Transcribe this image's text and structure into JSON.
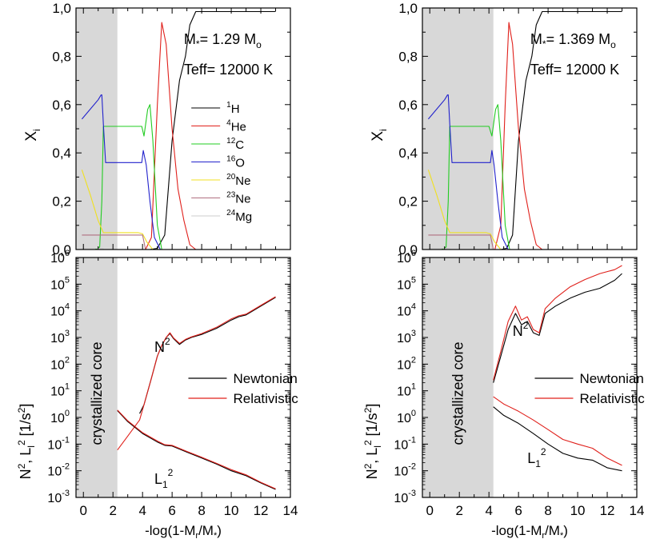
{
  "chart_data": [
    {
      "type": "line",
      "panel": "left",
      "annotations": {
        "mass": "M",
        "mass_sub": "*",
        "mass_eq": "= 1.29 M",
        "mass_unit_sub": "o",
        "teff": "Teff= 12000 K"
      },
      "ylabel": "X",
      "ylabel_sub": "i",
      "xlim": [
        -0.5,
        14
      ],
      "ylim": [
        0,
        1
      ],
      "yticks": [
        "0,0",
        "0,2",
        "0,4",
        "0,6",
        "0,8",
        "1,0"
      ],
      "shaded_region": [
        -0.5,
        2.3
      ],
      "legend": [
        {
          "sup": "1",
          "el": "H",
          "color": "#000000"
        },
        {
          "sup": "4",
          "el": "He",
          "color": "#e0201b"
        },
        {
          "sup": "12",
          "el": "C",
          "color": "#22cc22"
        },
        {
          "sup": "16",
          "el": "O",
          "color": "#2222cc"
        },
        {
          "sup": "20",
          "el": "Ne",
          "color": "#f0e020"
        },
        {
          "sup": "23",
          "el": "Ne",
          "color": "#b07080"
        },
        {
          "sup": "24",
          "el": "Mg",
          "color": "#cccccc"
        }
      ],
      "series": [
        {
          "color": "#000000",
          "x": [
            -0.1,
            4.5,
            5.0,
            5.5,
            6.0,
            6.5,
            6.9,
            7.2,
            7.6,
            13.0
          ],
          "y": [
            0,
            0,
            0.005,
            0.06,
            0.45,
            0.7,
            0.8,
            0.93,
            0.985,
            0.985
          ]
        },
        {
          "color": "#e0201b",
          "x": [
            -0.1,
            4.2,
            4.6,
            5.0,
            5.3,
            5.6,
            6.0,
            6.4,
            6.8,
            7.2,
            7.6,
            13.0
          ],
          "y": [
            0,
            0,
            0.05,
            0.6,
            0.94,
            0.85,
            0.5,
            0.25,
            0.12,
            0.02,
            0,
            0
          ]
        },
        {
          "color": "#22cc22",
          "x": [
            -0.1,
            0.8,
            1.1,
            1.25,
            1.35,
            1.5,
            3.7,
            3.95,
            4.1,
            4.35,
            4.5,
            4.7,
            5.0,
            5.3,
            13.0
          ],
          "y": [
            0,
            0,
            0.01,
            0.2,
            0.51,
            0.51,
            0.51,
            0.51,
            0.47,
            0.58,
            0.6,
            0.45,
            0.1,
            0,
            0
          ]
        },
        {
          "color": "#2222cc",
          "x": [
            -0.1,
            1.0,
            1.2,
            1.25,
            1.35,
            1.5,
            3.7,
            3.95,
            4.05,
            4.25,
            4.5,
            4.8,
            5.2,
            13.0
          ],
          "y": [
            0.54,
            0.62,
            0.64,
            0.64,
            0.52,
            0.36,
            0.36,
            0.36,
            0.41,
            0.35,
            0.2,
            0.05,
            0,
            0
          ]
        },
        {
          "color": "#f0e020",
          "x": [
            -0.1,
            0.5,
            1.0,
            1.35,
            1.5,
            3.7,
            4.0,
            4.3,
            4.7,
            13.0
          ],
          "y": [
            0.33,
            0.22,
            0.12,
            0.07,
            0.07,
            0.07,
            0.065,
            0.03,
            0,
            0
          ]
        },
        {
          "color": "#b07080",
          "x": [
            -0.1,
            4.0,
            4.2,
            13.0
          ],
          "y": [
            0.06,
            0.06,
            0.0,
            0.0
          ]
        },
        {
          "color": "#cccccc",
          "x": [
            -0.1,
            1.3,
            1.4,
            13.0
          ],
          "y": [
            0.005,
            0.005,
            0,
            0
          ]
        }
      ]
    },
    {
      "type": "line",
      "panel": "right",
      "annotations": {
        "mass": "M",
        "mass_sub": "*",
        "mass_eq": "= 1.369 M",
        "mass_unit_sub": "o",
        "teff": "Teff= 12000 K"
      },
      "ylabel": "X",
      "ylabel_sub": "i",
      "xlim": [
        -0.5,
        14
      ],
      "ylim": [
        0,
        1
      ],
      "yticks": [
        "0,0",
        "0,2",
        "0,4",
        "0,6",
        "0,8",
        "1,0"
      ],
      "shaded_region": [
        -0.5,
        4.3
      ],
      "series": [
        {
          "color": "#000000",
          "x": [
            -0.1,
            4.8,
            5.2,
            5.6,
            6.0,
            6.5,
            6.9,
            7.2,
            7.6,
            13.0
          ],
          "y": [
            0,
            0,
            0.005,
            0.06,
            0.45,
            0.7,
            0.8,
            0.93,
            0.985,
            0.985
          ]
        },
        {
          "color": "#e0201b",
          "x": [
            -0.1,
            4.4,
            4.8,
            5.1,
            5.35,
            5.6,
            6.0,
            6.4,
            6.8,
            7.2,
            7.6,
            13.0
          ],
          "y": [
            0,
            0,
            0.1,
            0.6,
            0.94,
            0.85,
            0.5,
            0.25,
            0.12,
            0.02,
            0,
            0
          ]
        },
        {
          "color": "#22cc22",
          "x": [
            -0.1,
            0.8,
            1.1,
            1.25,
            1.35,
            1.5,
            3.7,
            4.0,
            4.2,
            4.45,
            4.6,
            4.8,
            5.1,
            5.4,
            13.0
          ],
          "y": [
            0,
            0,
            0.01,
            0.2,
            0.51,
            0.51,
            0.51,
            0.51,
            0.47,
            0.58,
            0.6,
            0.45,
            0.1,
            0,
            0
          ]
        },
        {
          "color": "#2222cc",
          "x": [
            -0.1,
            1.0,
            1.2,
            1.25,
            1.35,
            1.5,
            3.8,
            4.1,
            4.2,
            4.35,
            4.6,
            4.9,
            5.3,
            13.0
          ],
          "y": [
            0.54,
            0.62,
            0.64,
            0.64,
            0.52,
            0.36,
            0.36,
            0.36,
            0.41,
            0.35,
            0.2,
            0.05,
            0,
            0
          ]
        },
        {
          "color": "#f0e020",
          "x": [
            -0.1,
            0.5,
            1.0,
            1.35,
            1.5,
            3.8,
            4.1,
            4.4,
            4.8,
            13.0
          ],
          "y": [
            0.33,
            0.22,
            0.12,
            0.07,
            0.07,
            0.07,
            0.065,
            0.03,
            0,
            0
          ]
        },
        {
          "color": "#b07080",
          "x": [
            -0.1,
            4.1,
            4.3,
            13.0
          ],
          "y": [
            0.06,
            0.06,
            0.0,
            0.0
          ]
        },
        {
          "color": "#cccccc",
          "x": [
            -0.1,
            1.3,
            1.4,
            13.0
          ],
          "y": [
            0.005,
            0.005,
            0,
            0
          ]
        }
      ]
    },
    {
      "type": "line",
      "panel": "left",
      "yscale": "log",
      "xlabel": "-log(1-M",
      "xlabel_sub1": "r",
      "xlabel_mid": "/M",
      "xlabel_sub2": "*",
      "xlabel_end": ")",
      "ylabel_parts": [
        "N",
        "2",
        ", L",
        "l",
        "2",
        " [1/s",
        "2",
        "]"
      ],
      "xlim": [
        -0.5,
        14
      ],
      "ylim_exp": [
        -3,
        6
      ],
      "xticks": [
        "0",
        "2",
        "4",
        "6",
        "8",
        "10",
        "12",
        "14"
      ],
      "shaded_region": [
        -0.5,
        2.3
      ],
      "region_label": "crystallized core",
      "label_N": "N",
      "label_N_sup": "2",
      "label_L": "L",
      "label_L_sub": "1",
      "label_L_sup": "2",
      "legend": [
        {
          "name": "Newtonian",
          "color": "#000000"
        },
        {
          "name": "Relativistic",
          "color": "#e0201b"
        }
      ],
      "series": [
        {
          "name": "N2 Newtonian",
          "color": "#000000",
          "x": [
            3.8,
            4.1,
            4.6,
            5.0,
            5.3,
            5.6,
            5.85,
            6.1,
            6.5,
            6.9,
            7.3,
            8.0,
            9.0,
            10.0,
            10.5,
            11.0,
            12.0,
            13.0
          ],
          "y": [
            1.4,
            3,
            30,
            200,
            500,
            1000,
            1400,
            900,
            550,
            800,
            1000,
            1300,
            2200,
            4500,
            6000,
            7000,
            15000,
            32000
          ]
        },
        {
          "name": "N2 Relativistic",
          "color": "#e0201b",
          "x": [
            2.3,
            3.0,
            3.8,
            4.1,
            4.6,
            5.0,
            5.3,
            5.6,
            5.85,
            6.1,
            6.5,
            6.9,
            7.3,
            8.0,
            9.0,
            10.0,
            10.5,
            11.0,
            12.0,
            13.0
          ],
          "y": [
            0.06,
            0.2,
            0.8,
            3,
            30,
            200,
            500,
            1000,
            1500,
            950,
            600,
            850,
            1050,
            1400,
            2400,
            5000,
            6500,
            7500,
            16000,
            34000
          ]
        },
        {
          "name": "L2 Newtonian",
          "color": "#000000",
          "x": [
            2.3,
            3.0,
            4.0,
            5.0,
            5.5,
            6.0,
            7.0,
            8.0,
            9.0,
            10.0,
            11.0,
            12.0,
            13.0
          ],
          "y": [
            1.8,
            0.7,
            0.25,
            0.12,
            0.09,
            0.085,
            0.05,
            0.03,
            0.018,
            0.01,
            0.0065,
            0.0035,
            0.002
          ]
        },
        {
          "name": "L2 Relativistic",
          "color": "#e0201b",
          "x": [
            2.3,
            3.0,
            4.0,
            5.0,
            5.5,
            6.0,
            7.0,
            8.0,
            9.0,
            10.0,
            11.0,
            12.0,
            13.0
          ],
          "y": [
            1.9,
            0.75,
            0.27,
            0.13,
            0.095,
            0.09,
            0.053,
            0.032,
            0.019,
            0.011,
            0.007,
            0.0037,
            0.0021
          ]
        }
      ]
    },
    {
      "type": "line",
      "panel": "right",
      "yscale": "log",
      "xlabel": "-log(1-M",
      "xlabel_sub1": "r",
      "xlabel_mid": "/M",
      "xlabel_sub2": "*",
      "xlabel_end": ")",
      "ylabel_parts": [
        "N",
        "2",
        ", L",
        "l",
        "2",
        " [1/s",
        "2",
        "]"
      ],
      "xlim": [
        -0.5,
        14
      ],
      "ylim_exp": [
        -3,
        6
      ],
      "xticks": [
        "0",
        "2",
        "4",
        "6",
        "8",
        "10",
        "12",
        "14"
      ],
      "shaded_region": [
        -0.5,
        4.3
      ],
      "region_label": "crystallized core",
      "label_N": "N",
      "label_N_sup": "2",
      "label_L": "L",
      "label_L_sub": "1",
      "label_L_sup": "2",
      "legend": [
        {
          "name": "Newtonian",
          "color": "#000000"
        },
        {
          "name": "Relativistic",
          "color": "#e0201b"
        }
      ],
      "series": [
        {
          "name": "N2 Newtonian",
          "color": "#000000",
          "x": [
            4.3,
            4.8,
            5.3,
            5.8,
            6.2,
            6.6,
            7.0,
            7.4,
            7.8,
            8.5,
            9.5,
            10.5,
            11.5,
            12.5,
            13.0
          ],
          "y": [
            20,
            200,
            2000,
            8000,
            3000,
            4000,
            1500,
            1200,
            8000,
            15000,
            30000,
            50000,
            70000,
            140000,
            250000
          ]
        },
        {
          "name": "N2 Relativistic",
          "color": "#e0201b",
          "x": [
            4.3,
            4.8,
            5.3,
            5.8,
            6.2,
            6.6,
            7.0,
            7.4,
            7.8,
            8.5,
            9.5,
            10.5,
            11.5,
            12.5,
            13.0
          ],
          "y": [
            25,
            300,
            4000,
            15000,
            4500,
            6000,
            2000,
            1500,
            12000,
            30000,
            80000,
            150000,
            250000,
            350000,
            500000
          ]
        },
        {
          "name": "L2 Newtonian",
          "color": "#000000",
          "x": [
            4.3,
            5.0,
            6.0,
            7.0,
            8.0,
            9.0,
            10.0,
            11.0,
            12.0,
            13.0
          ],
          "y": [
            2.5,
            1.2,
            0.6,
            0.25,
            0.1,
            0.045,
            0.03,
            0.025,
            0.013,
            0.01
          ]
        },
        {
          "name": "L2 Relativistic",
          "color": "#e0201b",
          "x": [
            4.3,
            5.0,
            6.0,
            7.0,
            8.0,
            9.0,
            10.0,
            11.0,
            12.0,
            13.0
          ],
          "y": [
            6,
            3.2,
            1.7,
            0.8,
            0.35,
            0.15,
            0.1,
            0.07,
            0.03,
            0.016
          ]
        }
      ]
    }
  ]
}
